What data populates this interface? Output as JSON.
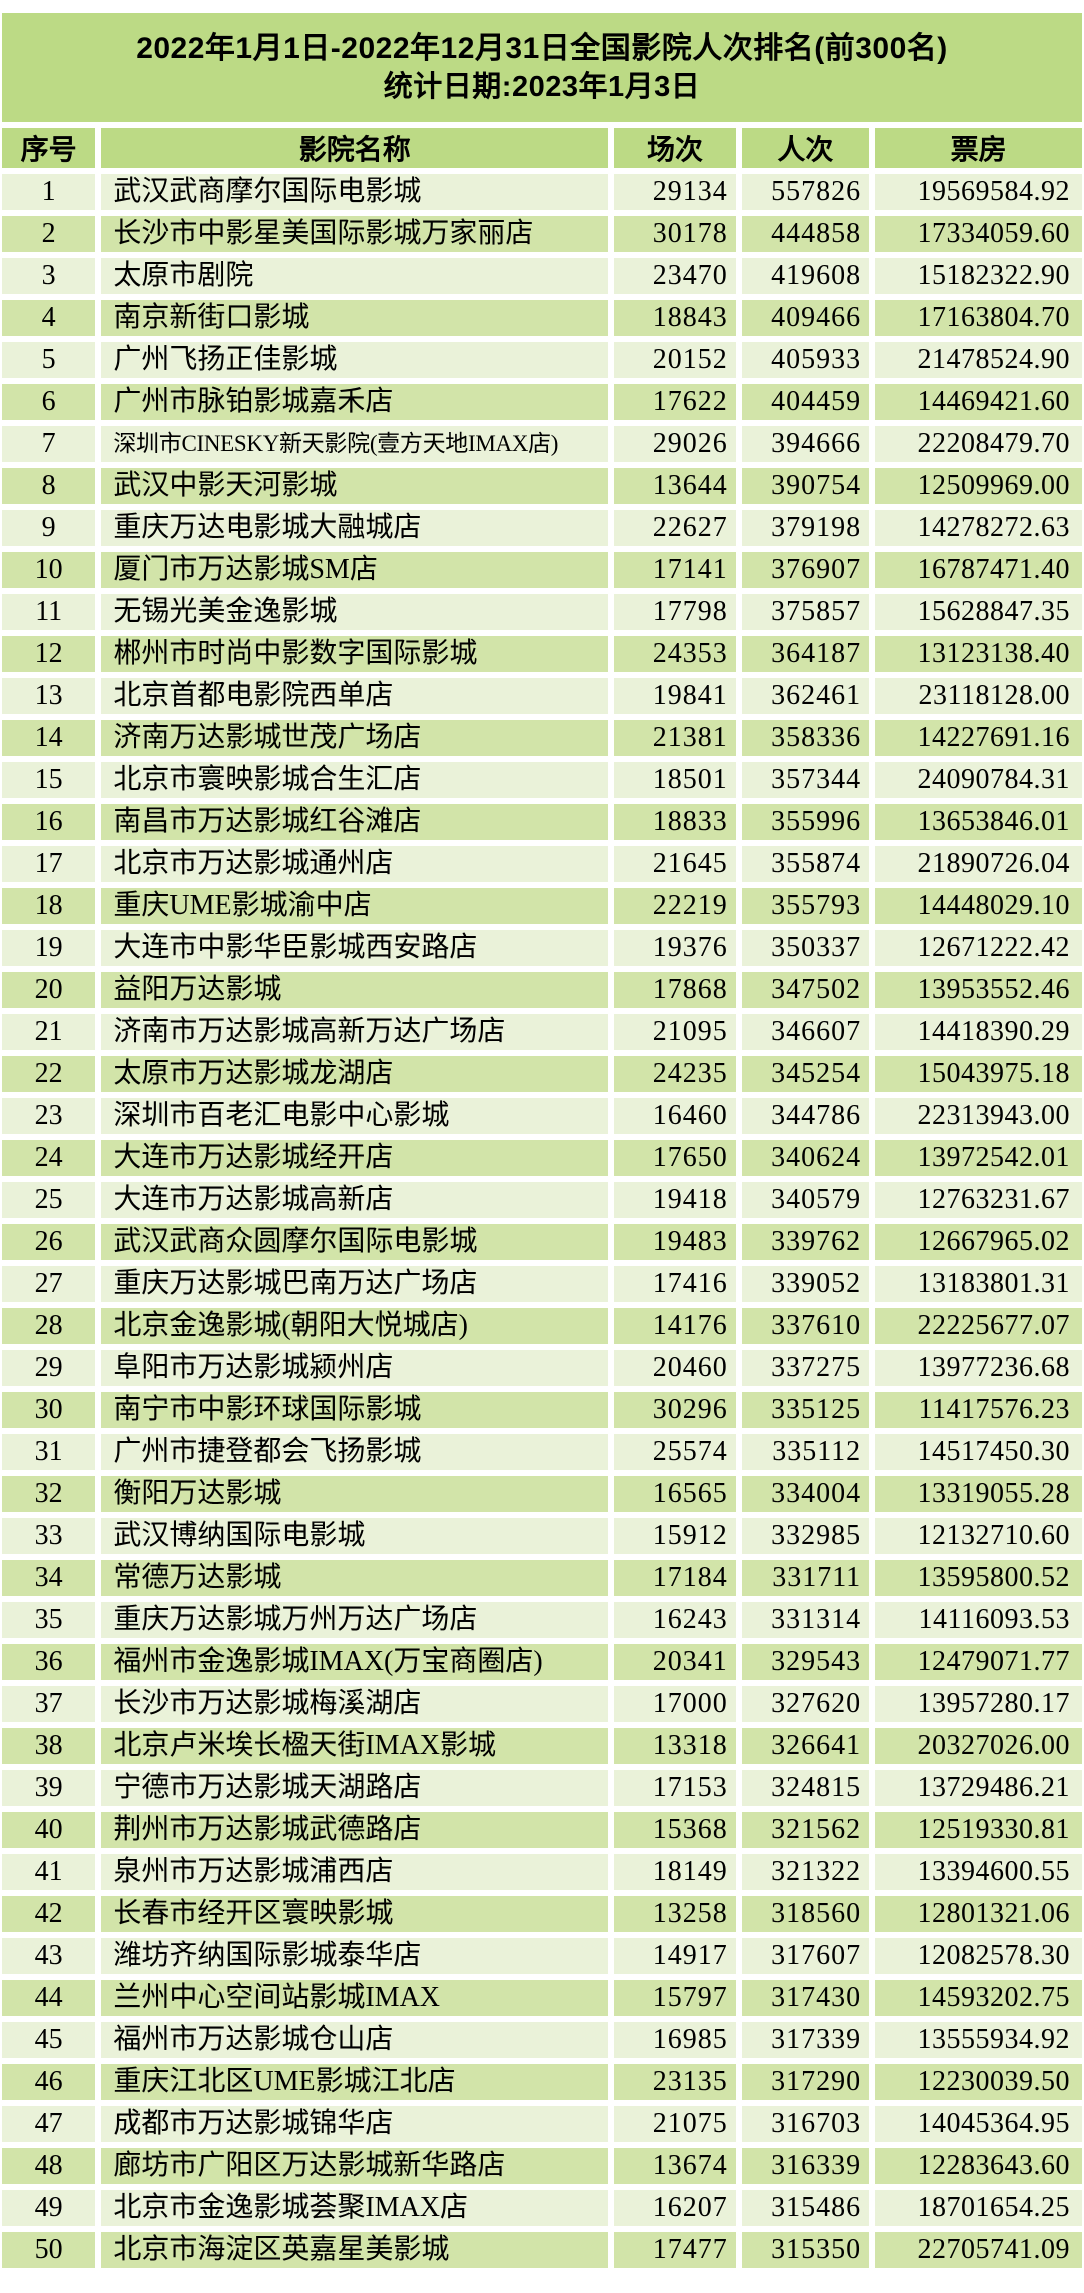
{
  "title": {
    "line1": "2022年1月1日-2022年12月31日全国影院人次排名(前300名)",
    "line2": "统计日期:2023年1月3日"
  },
  "colors": {
    "banner_green": "#bcda85",
    "row_even_green": "#d2e4a9",
    "row_odd_green": "#eaf2d9",
    "text": "#000000",
    "background": "#ffffff"
  },
  "table": {
    "headers": {
      "rank": "序号",
      "name": "影院名称",
      "sessions": "场次",
      "admissions": "人次",
      "box_office": "票房"
    },
    "rows": [
      {
        "rank": "1",
        "name": "武汉武商摩尔国际电影城",
        "sessions": "29134",
        "admissions": "557826",
        "box_office": "19569584.92"
      },
      {
        "rank": "2",
        "name": "长沙市中影星美国际影城万家丽店",
        "sessions": "30178",
        "admissions": "444858",
        "box_office": "17334059.60"
      },
      {
        "rank": "3",
        "name": "太原市剧院",
        "sessions": "23470",
        "admissions": "419608",
        "box_office": "15182322.90"
      },
      {
        "rank": "4",
        "name": "南京新街口影城",
        "sessions": "18843",
        "admissions": "409466",
        "box_office": "17163804.70"
      },
      {
        "rank": "5",
        "name": "广州飞扬正佳影城",
        "sessions": "20152",
        "admissions": "405933",
        "box_office": "21478524.90"
      },
      {
        "rank": "6",
        "name": "广州市脉铂影城嘉禾店",
        "sessions": "17622",
        "admissions": "404459",
        "box_office": "14469421.60"
      },
      {
        "rank": "7",
        "name": "深圳市CINESKY新天影院(壹方天地IMAX店)",
        "sessions": "29026",
        "admissions": "394666",
        "box_office": "22208479.70"
      },
      {
        "rank": "8",
        "name": "武汉中影天河影城",
        "sessions": "13644",
        "admissions": "390754",
        "box_office": "12509969.00"
      },
      {
        "rank": "9",
        "name": "重庆万达电影城大融城店",
        "sessions": "22627",
        "admissions": "379198",
        "box_office": "14278272.63"
      },
      {
        "rank": "10",
        "name": "厦门市万达影城SM店",
        "sessions": "17141",
        "admissions": "376907",
        "box_office": "16787471.40"
      },
      {
        "rank": "11",
        "name": "无锡光美金逸影城",
        "sessions": "17798",
        "admissions": "375857",
        "box_office": "15628847.35"
      },
      {
        "rank": "12",
        "name": "郴州市时尚中影数字国际影城",
        "sessions": "24353",
        "admissions": "364187",
        "box_office": "13123138.40"
      },
      {
        "rank": "13",
        "name": "北京首都电影院西单店",
        "sessions": "19841",
        "admissions": "362461",
        "box_office": "23118128.00"
      },
      {
        "rank": "14",
        "name": "济南万达影城世茂广场店",
        "sessions": "21381",
        "admissions": "358336",
        "box_office": "14227691.16"
      },
      {
        "rank": "15",
        "name": "北京市寰映影城合生汇店",
        "sessions": "18501",
        "admissions": "357344",
        "box_office": "24090784.31"
      },
      {
        "rank": "16",
        "name": "南昌市万达影城红谷滩店",
        "sessions": "18833",
        "admissions": "355996",
        "box_office": "13653846.01"
      },
      {
        "rank": "17",
        "name": "北京市万达影城通州店",
        "sessions": "21645",
        "admissions": "355874",
        "box_office": "21890726.04"
      },
      {
        "rank": "18",
        "name": "重庆UME影城渝中店",
        "sessions": "22219",
        "admissions": "355793",
        "box_office": "14448029.10"
      },
      {
        "rank": "19",
        "name": "大连市中影华臣影城西安路店",
        "sessions": "19376",
        "admissions": "350337",
        "box_office": "12671222.42"
      },
      {
        "rank": "20",
        "name": "益阳万达影城",
        "sessions": "17868",
        "admissions": "347502",
        "box_office": "13953552.46"
      },
      {
        "rank": "21",
        "name": "济南市万达影城高新万达广场店",
        "sessions": "21095",
        "admissions": "346607",
        "box_office": "14418390.29"
      },
      {
        "rank": "22",
        "name": "太原市万达影城龙湖店",
        "sessions": "24235",
        "admissions": "345254",
        "box_office": "15043975.18"
      },
      {
        "rank": "23",
        "name": "深圳市百老汇电影中心影城",
        "sessions": "16460",
        "admissions": "344786",
        "box_office": "22313943.00"
      },
      {
        "rank": "24",
        "name": "大连市万达影城经开店",
        "sessions": "17650",
        "admissions": "340624",
        "box_office": "13972542.01"
      },
      {
        "rank": "25",
        "name": "大连市万达影城高新店",
        "sessions": "19418",
        "admissions": "340579",
        "box_office": "12763231.67"
      },
      {
        "rank": "26",
        "name": "武汉武商众圆摩尔国际电影城",
        "sessions": "19483",
        "admissions": "339762",
        "box_office": "12667965.02"
      },
      {
        "rank": "27",
        "name": "重庆万达影城巴南万达广场店",
        "sessions": "17416",
        "admissions": "339052",
        "box_office": "13183801.31"
      },
      {
        "rank": "28",
        "name": "北京金逸影城(朝阳大悦城店)",
        "sessions": "14176",
        "admissions": "337610",
        "box_office": "22225677.07"
      },
      {
        "rank": "29",
        "name": "阜阳市万达影城颍州店",
        "sessions": "20460",
        "admissions": "337275",
        "box_office": "13977236.68"
      },
      {
        "rank": "30",
        "name": "南宁市中影环球国际影城",
        "sessions": "30296",
        "admissions": "335125",
        "box_office": "11417576.23"
      },
      {
        "rank": "31",
        "name": "广州市捷登都会飞扬影城",
        "sessions": "25574",
        "admissions": "335112",
        "box_office": "14517450.30"
      },
      {
        "rank": "32",
        "name": "衡阳万达影城",
        "sessions": "16565",
        "admissions": "334004",
        "box_office": "13319055.28"
      },
      {
        "rank": "33",
        "name": "武汉博纳国际电影城",
        "sessions": "15912",
        "admissions": "332985",
        "box_office": "12132710.60"
      },
      {
        "rank": "34",
        "name": "常德万达影城",
        "sessions": "17184",
        "admissions": "331711",
        "box_office": "13595800.52"
      },
      {
        "rank": "35",
        "name": "重庆万达影城万州万达广场店",
        "sessions": "16243",
        "admissions": "331314",
        "box_office": "14116093.53"
      },
      {
        "rank": "36",
        "name": "福州市金逸影城IMAX(万宝商圈店)",
        "sessions": "20341",
        "admissions": "329543",
        "box_office": "12479071.77"
      },
      {
        "rank": "37",
        "name": "长沙市万达影城梅溪湖店",
        "sessions": "17000",
        "admissions": "327620",
        "box_office": "13957280.17"
      },
      {
        "rank": "38",
        "name": "北京卢米埃长楹天街IMAX影城",
        "sessions": "13318",
        "admissions": "326641",
        "box_office": "20327026.00"
      },
      {
        "rank": "39",
        "name": "宁德市万达影城天湖路店",
        "sessions": "17153",
        "admissions": "324815",
        "box_office": "13729486.21"
      },
      {
        "rank": "40",
        "name": "荆州市万达影城武德路店",
        "sessions": "15368",
        "admissions": "321562",
        "box_office": "12519330.81"
      },
      {
        "rank": "41",
        "name": "泉州市万达影城浦西店",
        "sessions": "18149",
        "admissions": "321322",
        "box_office": "13394600.55"
      },
      {
        "rank": "42",
        "name": "长春市经开区寰映影城",
        "sessions": "13258",
        "admissions": "318560",
        "box_office": "12801321.06"
      },
      {
        "rank": "43",
        "name": "潍坊齐纳国际影城泰华店",
        "sessions": "14917",
        "admissions": "317607",
        "box_office": "12082578.30"
      },
      {
        "rank": "44",
        "name": "兰州中心空间站影城IMAX",
        "sessions": "15797",
        "admissions": "317430",
        "box_office": "14593202.75"
      },
      {
        "rank": "45",
        "name": "福州市万达影城仓山店",
        "sessions": "16985",
        "admissions": "317339",
        "box_office": "13555934.92"
      },
      {
        "rank": "46",
        "name": "重庆江北区UME影城江北店",
        "sessions": "23135",
        "admissions": "317290",
        "box_office": "12230039.50"
      },
      {
        "rank": "47",
        "name": "成都市万达影城锦华店",
        "sessions": "21075",
        "admissions": "316703",
        "box_office": "14045364.95"
      },
      {
        "rank": "48",
        "name": "廊坊市广阳区万达影城新华路店",
        "sessions": "13674",
        "admissions": "316339",
        "box_office": "12283643.60"
      },
      {
        "rank": "49",
        "name": "北京市金逸影城荟聚IMAX店",
        "sessions": "16207",
        "admissions": "315486",
        "box_office": "18701654.25"
      },
      {
        "rank": "50",
        "name": "北京市海淀区英嘉星美影城",
        "sessions": "17477",
        "admissions": "315350",
        "box_office": "22705741.09"
      }
    ]
  }
}
